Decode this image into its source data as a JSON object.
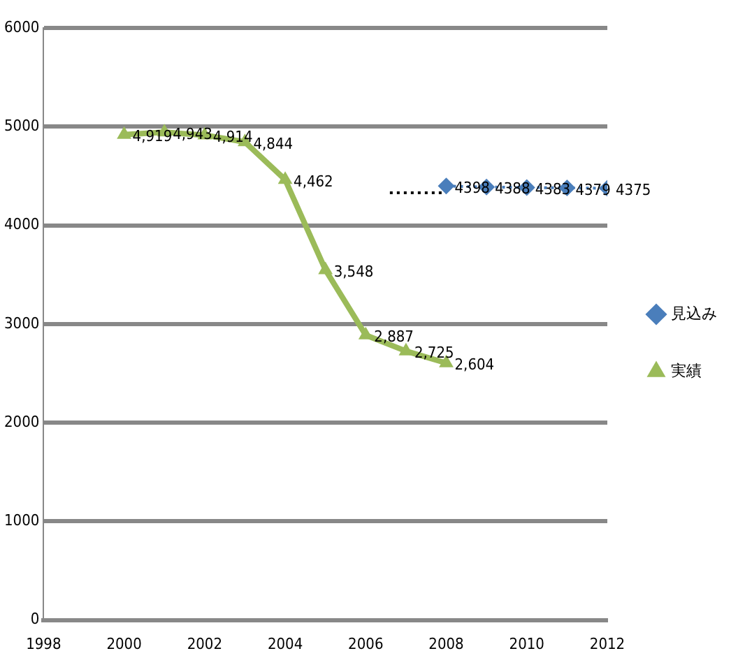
{
  "chart_data": {
    "type": "line",
    "xlim": [
      1998,
      2012
    ],
    "xticks": [
      1998,
      2000,
      2002,
      2004,
      2006,
      2008,
      2010,
      2012
    ],
    "ylim": [
      0,
      6000
    ],
    "yticks": [
      0,
      1000,
      2000,
      3000,
      4000,
      5000,
      6000
    ],
    "grid": "y",
    "legend": "right",
    "series": [
      {
        "name": "見込み",
        "color": "#4a7ebb",
        "marker": "diamond",
        "line_style": "dotted",
        "x": [
          2008,
          2009,
          2010,
          2011,
          2012
        ],
        "values": [
          4398,
          4388,
          4383,
          4379,
          4375
        ],
        "value_labels": [
          "4398",
          "4388",
          "4383",
          "4379",
          "4375"
        ]
      },
      {
        "name": "実績",
        "color": "#9bbb59",
        "marker": "triangle",
        "line_style": "solid",
        "x": [
          2000,
          2001,
          2002,
          2003,
          2004,
          2005,
          2006,
          2007,
          2008
        ],
        "values": [
          4919,
          4943,
          4914,
          4844,
          4462,
          3548,
          2887,
          2725,
          2604
        ],
        "value_labels": [
          "4,919",
          "4,943",
          "4,914",
          "4,844",
          "4,462",
          "3,548",
          "2,887",
          "2,725",
          "2,604"
        ]
      },
      {
        "color": "#000000",
        "marker": "none",
        "line_style": "dotted",
        "x": [
          2006.6,
          2008
        ],
        "values": [
          4330,
          4330
        ]
      }
    ]
  }
}
